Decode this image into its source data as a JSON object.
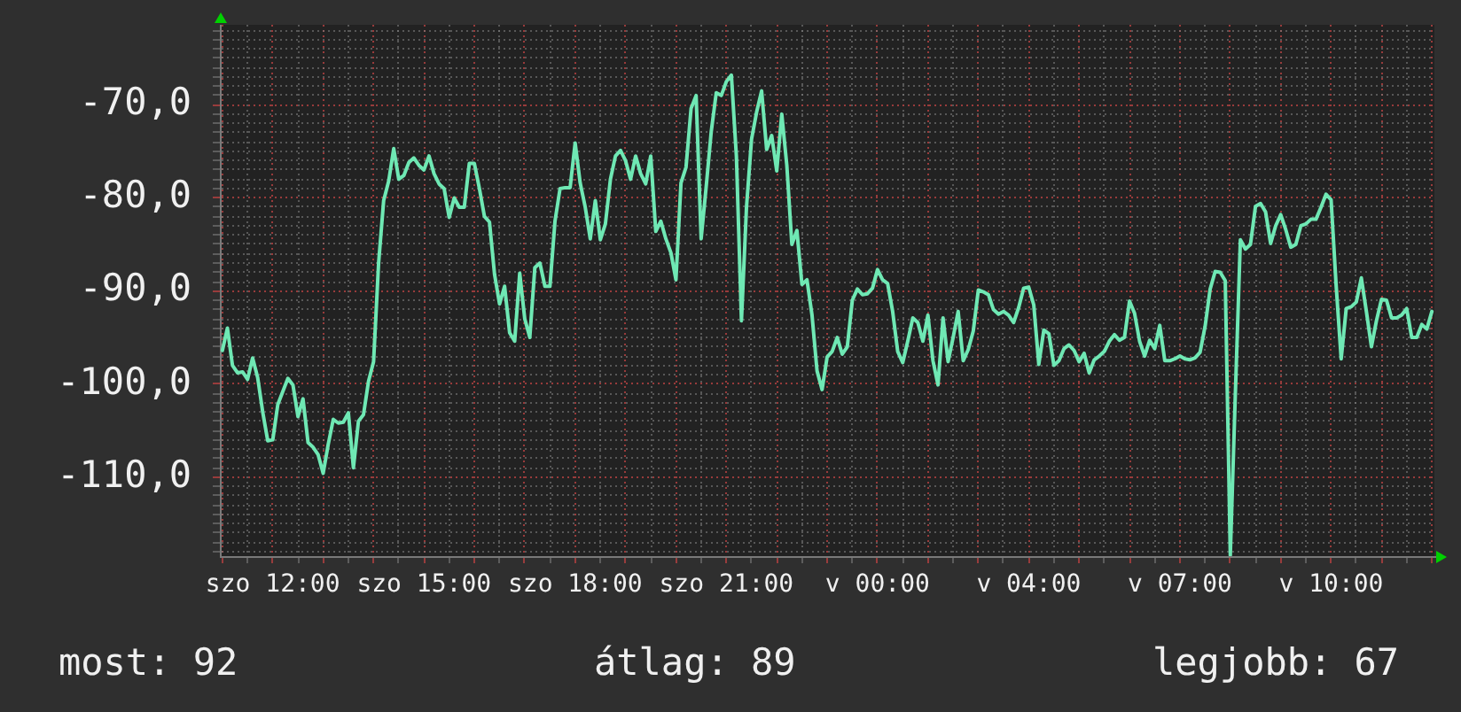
{
  "chart_data": {
    "type": "line",
    "color": "#6fe8b4",
    "grid": true,
    "annotations": [
      "most: 92",
      "átlag: 89",
      "legjobb: 67"
    ],
    "ylim": [
      -118.5,
      -61.4
    ],
    "yticks": [
      {
        "value": -118,
        "label": null
      },
      {
        "value": -117,
        "label": null
      },
      {
        "value": -116,
        "label": null
      },
      {
        "value": -115,
        "label": null
      },
      {
        "value": -114,
        "label": null
      },
      {
        "value": -113,
        "label": null
      },
      {
        "value": -112,
        "label": null
      },
      {
        "value": -111,
        "label": null
      },
      {
        "value": -110,
        "label": "-110,0"
      },
      {
        "value": -109,
        "label": null
      },
      {
        "value": -108,
        "label": null
      },
      {
        "value": -107,
        "label": null
      },
      {
        "value": -106,
        "label": null
      },
      {
        "value": -105,
        "label": null
      },
      {
        "value": -104,
        "label": null
      },
      {
        "value": -103,
        "label": null
      },
      {
        "value": -102,
        "label": null
      },
      {
        "value": -101,
        "label": null
      },
      {
        "value": -100,
        "label": "-100,0"
      },
      {
        "value": -99,
        "label": null
      },
      {
        "value": -98,
        "label": null
      },
      {
        "value": -97,
        "label": null
      },
      {
        "value": -96,
        "label": null
      },
      {
        "value": -95,
        "label": null
      },
      {
        "value": -94,
        "label": null
      },
      {
        "value": -93,
        "label": null
      },
      {
        "value": -92,
        "label": null
      },
      {
        "value": -91,
        "label": null
      },
      {
        "value": -90,
        "label": "-90,0"
      },
      {
        "value": -89,
        "label": null
      },
      {
        "value": -88,
        "label": null
      },
      {
        "value": -87,
        "label": null
      },
      {
        "value": -86,
        "label": null
      },
      {
        "value": -85,
        "label": null
      },
      {
        "value": -84,
        "label": null
      },
      {
        "value": -83,
        "label": null
      },
      {
        "value": -82,
        "label": null
      },
      {
        "value": -81,
        "label": null
      },
      {
        "value": -80,
        "label": "-80,0"
      },
      {
        "value": -79,
        "label": null
      },
      {
        "value": -78,
        "label": null
      },
      {
        "value": -77,
        "label": null
      },
      {
        "value": -76,
        "label": null
      },
      {
        "value": -75,
        "label": null
      },
      {
        "value": -74,
        "label": null
      },
      {
        "value": -73,
        "label": null
      },
      {
        "value": -72,
        "label": null
      },
      {
        "value": -71,
        "label": null
      },
      {
        "value": -70,
        "label": "-70,0"
      },
      {
        "value": -69,
        "label": null
      },
      {
        "value": -68,
        "label": null
      },
      {
        "value": -67,
        "label": null
      },
      {
        "value": -66,
        "label": null
      },
      {
        "value": -65,
        "label": null
      },
      {
        "value": -64,
        "label": null
      },
      {
        "value": -63,
        "label": null
      },
      {
        "value": -62,
        "label": null
      }
    ],
    "categories": [
      null,
      null,
      null,
      null,
      null,
      null,
      null,
      null,
      null,
      null,
      "szo 12:00",
      null,
      null,
      null,
      null,
      null,
      null,
      null,
      null,
      null,
      null,
      null,
      null,
      null,
      null,
      null,
      null,
      null,
      null,
      null,
      null,
      null,
      null,
      null,
      null,
      null,
      null,
      null,
      null,
      null,
      "szo 15:00",
      null,
      null,
      null,
      null,
      null,
      null,
      null,
      null,
      null,
      null,
      null,
      null,
      null,
      null,
      null,
      null,
      null,
      null,
      null,
      null,
      null,
      null,
      null,
      null,
      null,
      null,
      null,
      null,
      null,
      "szo 18:00",
      null,
      null,
      null,
      null,
      null,
      null,
      null,
      null,
      null,
      null,
      null,
      null,
      null,
      null,
      null,
      null,
      null,
      null,
      null,
      null,
      null,
      null,
      null,
      null,
      null,
      null,
      null,
      null,
      null,
      "szo 21:00",
      null,
      null,
      null,
      null,
      null,
      null,
      null,
      null,
      null,
      null,
      null,
      null,
      null,
      null,
      null,
      null,
      null,
      null,
      null,
      null,
      null,
      null,
      null,
      null,
      null,
      null,
      null,
      null,
      null,
      "v 00:00",
      null,
      null,
      null,
      null,
      null,
      null,
      null,
      null,
      null,
      null,
      null,
      null,
      null,
      null,
      null,
      null,
      null,
      null,
      null,
      null,
      null,
      null,
      null,
      null,
      null,
      null,
      null,
      null,
      null,
      "v 04:00",
      null,
      null,
      null,
      null,
      null,
      null,
      null,
      null,
      null,
      null,
      null,
      null,
      null,
      null,
      null,
      null,
      null,
      null,
      null,
      null,
      null,
      null,
      null,
      null,
      null,
      null,
      null,
      null,
      null,
      "v 07:00",
      null,
      null,
      null,
      null,
      null,
      null,
      null,
      null,
      null,
      null,
      null,
      null,
      null,
      null,
      null,
      null,
      null,
      null,
      null,
      null,
      null,
      null,
      null,
      null,
      null,
      null,
      null,
      null,
      null,
      "v 10:00",
      null,
      null,
      null,
      null,
      null,
      null,
      null,
      null,
      null,
      null,
      null,
      null,
      null,
      null,
      null,
      null,
      null,
      null,
      null,
      null
    ],
    "values": [
      -96.4,
      -94.0,
      -98.0,
      -98.8,
      -98.7,
      -99.5,
      -97.2,
      -99.3,
      -103.0,
      -106.1,
      -106.0,
      -102.2,
      -100.8,
      -99.4,
      -100.1,
      -103.5,
      -101.6,
      -106.3,
      -106.8,
      -107.6,
      -109.6,
      -106.5,
      -103.8,
      -104.2,
      -104.1,
      -103.1,
      -109.0,
      -104.0,
      -103.3,
      -99.7,
      -97.6,
      -87.0,
      -80.3,
      -78.2,
      -74.7,
      -78.0,
      -77.6,
      -76.2,
      -75.7,
      -76.5,
      -77.0,
      -75.5,
      -77.4,
      -78.5,
      -79.0,
      -82.1,
      -80.0,
      -81.0,
      -81.0,
      -76.3,
      -76.3,
      -79.0,
      -82.0,
      -82.6,
      -88.2,
      -91.4,
      -89.5,
      -94.5,
      -95.4,
      -88.1,
      -93.0,
      -95.0,
      -87.5,
      -87.0,
      -89.5,
      -89.5,
      -82.5,
      -79.0,
      -78.9,
      -78.9,
      -74.1,
      -78.4,
      -81.0,
      -84.4,
      -80.3,
      -84.5,
      -82.8,
      -78.0,
      -75.5,
      -74.9,
      -76.0,
      -78.0,
      -75.5,
      -77.4,
      -78.5,
      -75.5,
      -83.6,
      -82.5,
      -84.4,
      -85.9,
      -88.8,
      -78.4,
      -76.7,
      -70.4,
      -69.0,
      -84.4,
      -78.8,
      -72.9,
      -68.7,
      -69.0,
      -67.5,
      -66.8,
      -75.6,
      -93.2,
      -81.0,
      -73.7,
      -70.8,
      -68.5,
      -74.8,
      -73.3,
      -77.1,
      -71.0,
      -76.5,
      -85.0,
      -83.5,
      -89.3,
      -88.8,
      -92.6,
      -98.6,
      -100.6,
      -97.1,
      -96.5,
      -95.0,
      -96.8,
      -96.0,
      -91.0,
      -89.8,
      -90.4,
      -90.3,
      -89.7,
      -87.7,
      -88.8,
      -89.2,
      -92.2,
      -96.5,
      -97.7,
      -95.4,
      -92.9,
      -93.4,
      -95.4,
      -92.6,
      -97.5,
      -100.1,
      -92.9,
      -97.6,
      -95.0,
      -92.2,
      -97.5,
      -96.3,
      -94.3,
      -89.9,
      -90.1,
      -90.4,
      -92.0,
      -92.5,
      -92.2,
      -92.6,
      -93.4,
      -91.8,
      -89.7,
      -89.6,
      -91.5,
      -97.9,
      -94.2,
      -94.6,
      -98.0,
      -97.5,
      -96.2,
      -95.8,
      -96.4,
      -97.6,
      -96.7,
      -98.8,
      -97.4,
      -97.0,
      -96.5,
      -95.4,
      -94.7,
      -95.3,
      -95.0,
      -91.1,
      -92.4,
      -95.4,
      -97.0,
      -95.3,
      -96.2,
      -93.7,
      -97.5,
      -97.5,
      -97.3,
      -97.0,
      -97.3,
      -97.4,
      -97.2,
      -96.6,
      -93.8,
      -89.8,
      -87.9,
      -88.0,
      -88.9,
      -118.4,
      -101.1,
      -84.5,
      -85.5,
      -85.0,
      -80.9,
      -80.6,
      -81.5,
      -84.9,
      -83.0,
      -81.8,
      -83.4,
      -85.3,
      -85.0,
      -83.0,
      -82.8,
      -82.3,
      -82.3,
      -81.0,
      -79.6,
      -80.2,
      -89.4,
      -97.3,
      -91.9,
      -91.7,
      -91.2,
      -88.6,
      -92.2,
      -96.0,
      -93.2,
      -90.9,
      -91.0,
      -92.9,
      -92.9,
      -92.6,
      -91.9,
      -95.0,
      -95.0,
      -93.6,
      -94.1,
      -92.2
    ]
  }
}
